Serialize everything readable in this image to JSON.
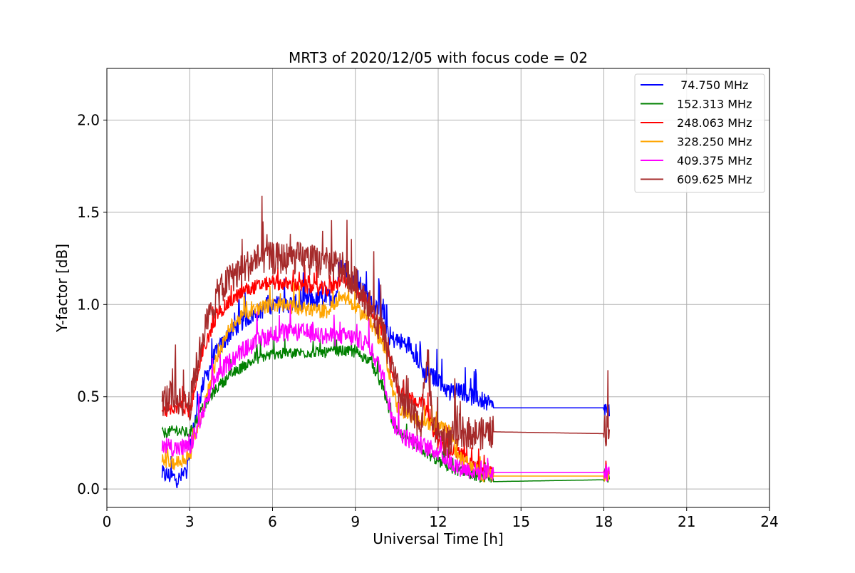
{
  "chart_data": {
    "type": "line",
    "title": "MRT3 of 2020/12/05 with focus code = 02",
    "xlabel": "Universal Time [h]",
    "ylabel": "Y-factor [dB]",
    "xlim": [
      0,
      24
    ],
    "ylim": [
      -0.1,
      2.28
    ],
    "x_ticks": [
      0,
      3,
      6,
      9,
      12,
      15,
      18,
      21,
      24
    ],
    "y_ticks": [
      0.0,
      0.5,
      1.0,
      1.5,
      2.0
    ],
    "x_tick_labels": [
      "0",
      "3",
      "6",
      "9",
      "12",
      "15",
      "18",
      "21",
      "24"
    ],
    "y_tick_labels": [
      "0.0",
      "0.5",
      "1.0",
      "1.5",
      "2.0"
    ],
    "grid": true,
    "legend_position": "top-right",
    "series": [
      {
        "name": " 74.750 MHz",
        "color": "#0000ff",
        "points": [
          [
            2.0,
            0.08
          ],
          [
            2.3,
            0.07
          ],
          [
            2.6,
            0.05
          ],
          [
            2.9,
            0.1
          ],
          [
            3.2,
            0.38
          ],
          [
            3.5,
            0.58
          ],
          [
            4.0,
            0.75
          ],
          [
            4.5,
            0.85
          ],
          [
            5.0,
            0.92
          ],
          [
            5.5,
            0.96
          ],
          [
            6.0,
            1.0
          ],
          [
            6.5,
            1.0
          ],
          [
            7.0,
            1.01
          ],
          [
            7.5,
            1.02
          ],
          [
            8.0,
            1.04
          ],
          [
            8.3,
            1.05
          ],
          [
            8.5,
            1.22
          ],
          [
            8.8,
            1.15
          ],
          [
            9.2,
            1.1
          ],
          [
            9.6,
            1.0
          ],
          [
            10.0,
            0.95
          ],
          [
            10.2,
            0.82
          ],
          [
            10.6,
            0.8
          ],
          [
            11.0,
            0.78
          ],
          [
            11.4,
            0.66
          ],
          [
            11.5,
            0.62
          ],
          [
            12.0,
            0.6
          ],
          [
            12.4,
            0.52
          ],
          [
            12.7,
            0.55
          ],
          [
            13.2,
            0.5
          ],
          [
            13.6,
            0.48
          ],
          [
            13.9,
            0.45
          ],
          [
            14.0,
            0.44
          ],
          [
            18.0,
            0.44
          ],
          [
            18.2,
            0.42
          ]
        ],
        "noise": 0.05
      },
      {
        "name": "152.313 MHz",
        "color": "#008000",
        "points": [
          [
            2.0,
            0.3
          ],
          [
            2.5,
            0.32
          ],
          [
            3.0,
            0.3
          ],
          [
            3.5,
            0.45
          ],
          [
            4.0,
            0.55
          ],
          [
            4.5,
            0.62
          ],
          [
            5.0,
            0.67
          ],
          [
            5.5,
            0.71
          ],
          [
            6.0,
            0.73
          ],
          [
            7.0,
            0.74
          ],
          [
            8.0,
            0.74
          ],
          [
            8.5,
            0.75
          ],
          [
            9.0,
            0.74
          ],
          [
            9.5,
            0.7
          ],
          [
            10.0,
            0.55
          ],
          [
            10.4,
            0.33
          ],
          [
            10.8,
            0.27
          ],
          [
            11.2,
            0.24
          ],
          [
            11.5,
            0.2
          ],
          [
            12.0,
            0.15
          ],
          [
            12.4,
            0.12
          ],
          [
            12.7,
            0.1
          ],
          [
            13.2,
            0.08
          ],
          [
            13.6,
            0.06
          ],
          [
            14.0,
            0.04
          ],
          [
            18.0,
            0.05
          ],
          [
            18.2,
            0.05
          ]
        ],
        "noise": 0.03
      },
      {
        "name": "248.063 MHz",
        "color": "#ff0000",
        "points": [
          [
            2.0,
            0.42
          ],
          [
            2.5,
            0.45
          ],
          [
            3.0,
            0.42
          ],
          [
            3.5,
            0.75
          ],
          [
            4.0,
            0.95
          ],
          [
            4.5,
            1.02
          ],
          [
            5.0,
            1.08
          ],
          [
            5.5,
            1.1
          ],
          [
            6.0,
            1.12
          ],
          [
            7.0,
            1.1
          ],
          [
            8.0,
            1.08
          ],
          [
            8.3,
            1.1
          ],
          [
            8.5,
            1.15
          ],
          [
            9.0,
            1.08
          ],
          [
            9.5,
            1.0
          ],
          [
            10.0,
            0.85
          ],
          [
            10.5,
            0.55
          ],
          [
            11.0,
            0.5
          ],
          [
            11.5,
            0.45
          ],
          [
            12.0,
            0.25
          ],
          [
            12.4,
            0.22
          ],
          [
            12.7,
            0.2
          ],
          [
            13.2,
            0.15
          ],
          [
            13.6,
            0.1
          ],
          [
            14.0,
            0.09
          ],
          [
            18.0,
            0.09
          ],
          [
            18.2,
            0.08
          ]
        ],
        "noise": 0.04
      },
      {
        "name": "328.250 MHz",
        "color": "#ffa500",
        "points": [
          [
            2.0,
            0.15
          ],
          [
            2.5,
            0.14
          ],
          [
            3.0,
            0.18
          ],
          [
            3.5,
            0.45
          ],
          [
            4.0,
            0.72
          ],
          [
            4.5,
            0.88
          ],
          [
            5.0,
            0.95
          ],
          [
            5.5,
            0.98
          ],
          [
            6.0,
            1.0
          ],
          [
            7.0,
            0.98
          ],
          [
            8.0,
            0.96
          ],
          [
            8.3,
            1.02
          ],
          [
            8.5,
            1.05
          ],
          [
            9.0,
            0.98
          ],
          [
            9.5,
            0.92
          ],
          [
            10.0,
            0.78
          ],
          [
            10.5,
            0.45
          ],
          [
            11.0,
            0.38
          ],
          [
            11.5,
            0.37
          ],
          [
            12.0,
            0.33
          ],
          [
            12.4,
            0.32
          ],
          [
            12.7,
            0.18
          ],
          [
            13.2,
            0.12
          ],
          [
            13.6,
            0.08
          ],
          [
            14.0,
            0.07
          ],
          [
            18.0,
            0.07
          ],
          [
            18.2,
            0.06
          ]
        ],
        "noise": 0.04
      },
      {
        "name": "409.375 MHz",
        "color": "#ff00ff",
        "points": [
          [
            2.0,
            0.25
          ],
          [
            2.5,
            0.22
          ],
          [
            3.0,
            0.22
          ],
          [
            3.5,
            0.42
          ],
          [
            4.0,
            0.62
          ],
          [
            4.5,
            0.7
          ],
          [
            5.0,
            0.76
          ],
          [
            5.5,
            0.8
          ],
          [
            6.0,
            0.84
          ],
          [
            7.0,
            0.85
          ],
          [
            8.0,
            0.83
          ],
          [
            8.3,
            0.82
          ],
          [
            8.5,
            0.83
          ],
          [
            9.0,
            0.82
          ],
          [
            9.5,
            0.78
          ],
          [
            10.0,
            0.62
          ],
          [
            10.4,
            0.35
          ],
          [
            10.8,
            0.28
          ],
          [
            11.2,
            0.25
          ],
          [
            11.5,
            0.23
          ],
          [
            12.0,
            0.2
          ],
          [
            12.4,
            0.15
          ],
          [
            12.7,
            0.12
          ],
          [
            13.2,
            0.1
          ],
          [
            13.6,
            0.09
          ],
          [
            14.0,
            0.09
          ],
          [
            18.0,
            0.09
          ],
          [
            18.2,
            0.08
          ]
        ],
        "noise": 0.05
      },
      {
        "name": "609.625 MHz",
        "color": "#a52a2a",
        "points": [
          [
            2.0,
            0.48
          ],
          [
            2.5,
            0.5
          ],
          [
            3.0,
            0.45
          ],
          [
            3.5,
            0.85
          ],
          [
            4.0,
            1.05
          ],
          [
            4.5,
            1.15
          ],
          [
            5.0,
            1.2
          ],
          [
            5.5,
            1.25
          ],
          [
            6.0,
            1.25
          ],
          [
            7.0,
            1.25
          ],
          [
            8.0,
            1.22
          ],
          [
            8.5,
            1.2
          ],
          [
            9.0,
            1.12
          ],
          [
            9.5,
            1.0
          ],
          [
            10.0,
            0.85
          ],
          [
            10.5,
            0.55
          ],
          [
            11.0,
            0.4
          ],
          [
            11.4,
            0.36
          ],
          [
            11.6,
            0.74
          ],
          [
            11.8,
            0.35
          ],
          [
            12.0,
            0.3
          ],
          [
            12.4,
            0.25
          ],
          [
            12.7,
            0.32
          ],
          [
            13.2,
            0.3
          ],
          [
            13.6,
            0.3
          ],
          [
            14.0,
            0.31
          ],
          [
            18.0,
            0.3
          ],
          [
            18.2,
            0.35
          ]
        ],
        "noise": 0.09
      }
    ]
  }
}
